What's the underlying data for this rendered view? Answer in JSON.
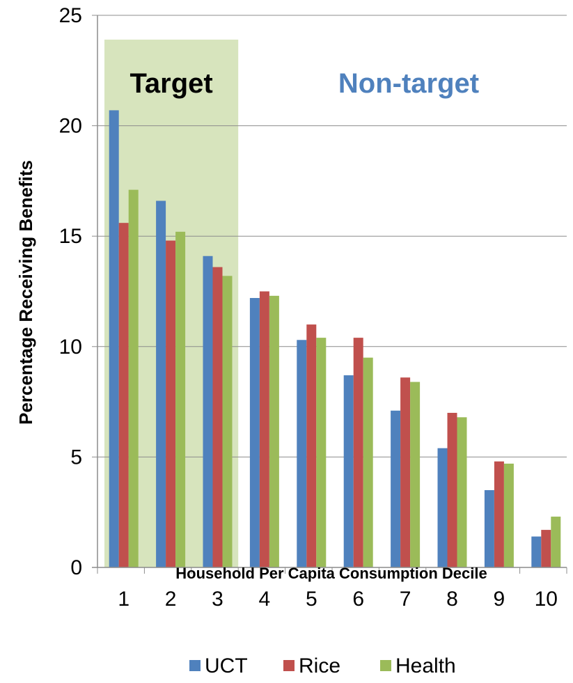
{
  "chart_data": {
    "type": "bar",
    "title": "",
    "xlabel": "Household Per Capita Consumption Decile",
    "ylabel": "Percentage Receiving Benefits",
    "categories": [
      "1",
      "2",
      "3",
      "4",
      "5",
      "6",
      "7",
      "8",
      "9",
      "10"
    ],
    "ylim": [
      0,
      25
    ],
    "yticks": [
      0,
      5,
      10,
      15,
      20,
      25
    ],
    "grid": "horizontal",
    "legend_position": "bottom",
    "series": [
      {
        "name": "UCT",
        "color": "#4f81bd",
        "values": [
          20.7,
          16.6,
          14.1,
          12.2,
          10.3,
          8.7,
          7.1,
          5.4,
          3.5,
          1.4
        ]
      },
      {
        "name": "Rice",
        "color": "#c0504d",
        "values": [
          15.6,
          14.8,
          13.6,
          12.5,
          11.0,
          10.4,
          8.6,
          7.0,
          4.8,
          1.7
        ]
      },
      {
        "name": "Health",
        "color": "#9bbb59",
        "values": [
          17.1,
          15.2,
          13.2,
          12.3,
          10.4,
          9.5,
          8.4,
          6.8,
          4.7,
          2.3
        ]
      }
    ],
    "regions": [
      {
        "label": "Target",
        "from_category": "1",
        "to_category": "3",
        "y_top": 23.9,
        "fill": "#d7e4bd",
        "label_color": "#000000"
      },
      {
        "label": "Non-target",
        "from_category": "4",
        "to_category": "10",
        "fill": "none",
        "label_color": "#4f81bd"
      }
    ]
  }
}
